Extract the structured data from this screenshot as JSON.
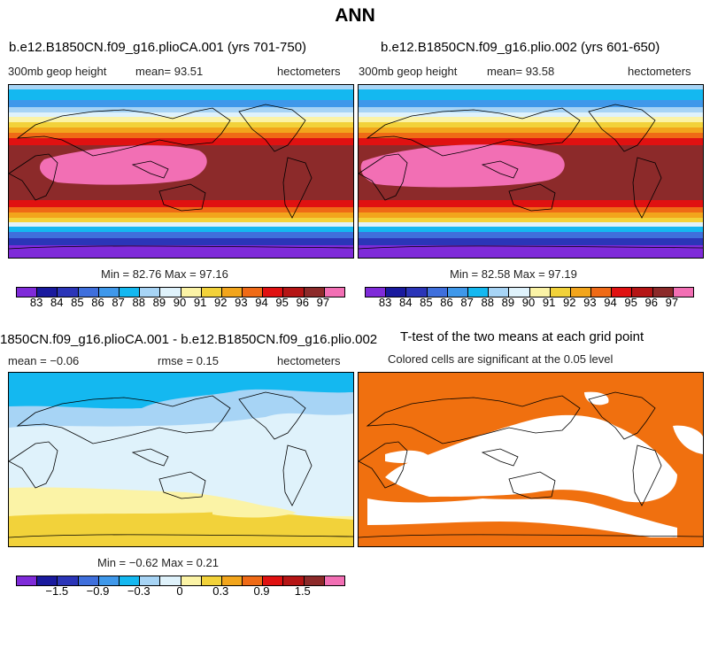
{
  "main_title": "ANN",
  "panel1": {
    "title": "b.e12.B1850CN.f09_g16.plioCA.001 (yrs 701-750)",
    "variable": "300mb geop height",
    "mean": "mean=  93.51",
    "units": "hectometers",
    "minmax": "Min =  82.76 Max =  97.16"
  },
  "panel2": {
    "title": "b.e12.B1850CN.f09_g16.plio.002 (yrs 601-650)",
    "variable": "300mb geop height",
    "mean": "mean=  93.58",
    "units": "hectometers",
    "minmax": "Min =  82.58 Max =  97.19"
  },
  "panel3": {
    "title": "1850CN.f09_g16.plioCA.001 - b.e12.B1850CN.f09_g16.plio.002",
    "mean": "mean =  −0.06",
    "rmse": "rmse =   0.15",
    "units": "hectometers",
    "minmax": "Min =  −0.62 Max =   0.21"
  },
  "panel4": {
    "title": "T-test of the two means at each grid point",
    "subtitle": "Colored cells are significant at the 0.05 level"
  },
  "colorbar_abs": {
    "colors": [
      "#7f2bd9",
      "#1a1a9e",
      "#2b35b8",
      "#3f6fdc",
      "#3f98ea",
      "#14b8f0",
      "#a7d4f5",
      "#dff2fb",
      "#fbf3a6",
      "#f2d23a",
      "#f2a51c",
      "#ef6a16",
      "#e01111",
      "#b51515",
      "#8c2a2a",
      "#f26fb4"
    ],
    "labels": [
      "83",
      "84",
      "85",
      "86",
      "87",
      "88",
      "89",
      "90",
      "91",
      "92",
      "93",
      "94",
      "95",
      "96",
      "97"
    ]
  },
  "colorbar_diff": {
    "colors": [
      "#7f2bd9",
      "#1a1a9e",
      "#2b35b8",
      "#3f6fdc",
      "#3f98ea",
      "#14b8f0",
      "#a7d4f5",
      "#dff2fb",
      "#fbf3a6",
      "#f2d23a",
      "#f2a51c",
      "#ef6a16",
      "#e01111",
      "#b51515",
      "#8c2a2a",
      "#f26fb4"
    ],
    "labels": [
      "−1.5",
      "−0.9",
      "−0.3",
      "0",
      "0.3",
      "0.9",
      "1.5"
    ]
  },
  "ttest_color": "#f0700f"
}
